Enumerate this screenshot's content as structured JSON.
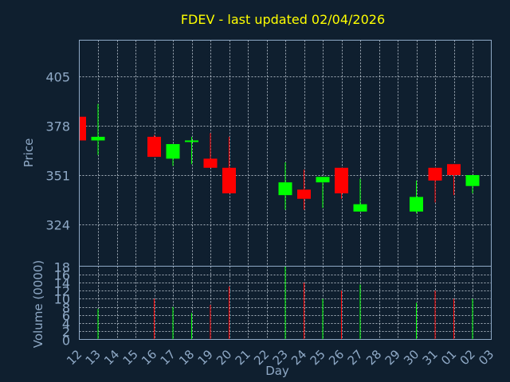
{
  "title": "FDEV - last updated 02/04/2026",
  "colors": {
    "background": "#0f1f2f",
    "frame": "#8fa9c6",
    "grid": "#c8d2dc",
    "up": "#00ff00",
    "down": "#ff0000",
    "title": "#ffff00",
    "label": "#8fa9c6"
  },
  "chart_data": {
    "type": "candlestick",
    "title": "FDEV - last updated 02/04/2026",
    "xlabel": "Day",
    "ylabel_price": "Price",
    "ylabel_volume": "Volume (0000)",
    "x_ticks": [
      "12",
      "13",
      "14",
      "15",
      "16",
      "17",
      "18",
      "19",
      "20",
      "21",
      "22",
      "23",
      "24",
      "25",
      "26",
      "27",
      "28",
      "29",
      "30",
      "31",
      "01",
      "02",
      "03"
    ],
    "price_ticks": [
      324,
      351,
      378,
      405
    ],
    "price_ylim": [
      301,
      425
    ],
    "volume_ticks": [
      0,
      2,
      4,
      6,
      8,
      10,
      12,
      14,
      16,
      18
    ],
    "volume_ylim": [
      0,
      18
    ],
    "grid": true,
    "candles": [
      {
        "day": "12",
        "open": 383,
        "high": 383,
        "low": 370,
        "close": 370,
        "volume": 0
      },
      {
        "day": "13",
        "open": 370,
        "high": 390,
        "low": 362,
        "close": 372,
        "volume": 7.5
      },
      {
        "day": "16",
        "open": 372,
        "high": 373,
        "low": 361,
        "close": 361,
        "volume": 10
      },
      {
        "day": "17",
        "open": 360,
        "high": 368,
        "low": 356,
        "close": 368,
        "volume": 8
      },
      {
        "day": "18",
        "open": 370,
        "high": 372,
        "low": 357,
        "close": 370,
        "volume": 6.5
      },
      {
        "day": "19",
        "open": 360,
        "high": 374,
        "low": 355,
        "close": 355,
        "volume": 8.5
      },
      {
        "day": "20",
        "open": 355,
        "high": 372,
        "low": 341,
        "close": 341,
        "volume": 13
      },
      {
        "day": "23",
        "open": 340,
        "high": 358,
        "low": 332,
        "close": 347,
        "volume": 18
      },
      {
        "day": "24",
        "open": 343,
        "high": 354,
        "low": 332,
        "close": 338,
        "volume": 14
      },
      {
        "day": "25",
        "open": 347,
        "high": 350,
        "low": 333,
        "close": 350,
        "volume": 10
      },
      {
        "day": "26",
        "open": 355,
        "high": 355,
        "low": 338,
        "close": 341,
        "volume": 12
      },
      {
        "day": "27",
        "open": 331,
        "high": 349,
        "low": 331,
        "close": 335,
        "volume": 13.5
      },
      {
        "day": "30",
        "open": 331,
        "high": 348,
        "low": 330,
        "close": 339,
        "volume": 9
      },
      {
        "day": "31",
        "open": 355,
        "high": 355,
        "low": 336,
        "close": 348,
        "volume": 12
      },
      {
        "day": "01",
        "open": 357,
        "high": 357,
        "low": 340,
        "close": 351,
        "volume": 10
      },
      {
        "day": "02",
        "open": 345,
        "high": 351,
        "low": 341,
        "close": 351,
        "volume": 10
      }
    ]
  }
}
